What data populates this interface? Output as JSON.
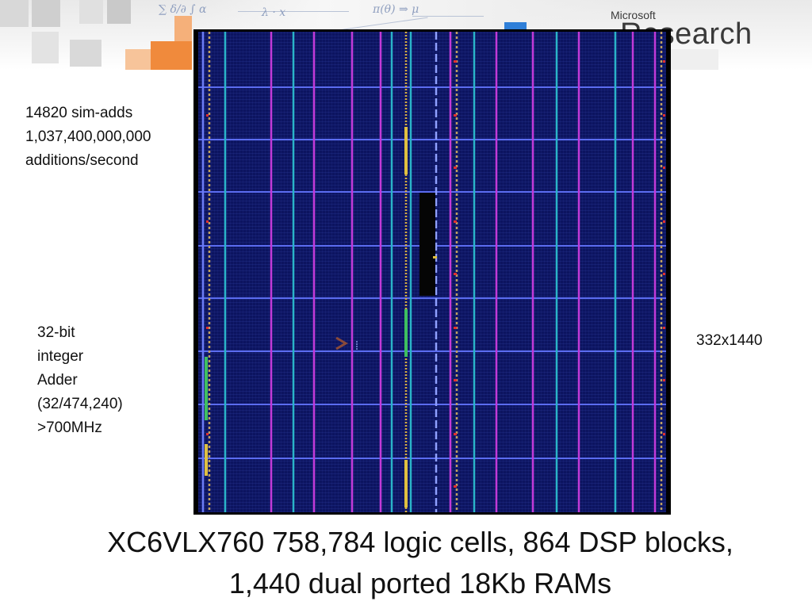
{
  "brand": {
    "company": "Microsoft",
    "division": "Research"
  },
  "annotations": {
    "sim_adds": [
      "14820 sim-adds",
      "1,037,400,000,000",
      "additions/second"
    ],
    "adder": [
      "32-bit",
      "integer",
      "Adder",
      "(32/474,240)",
      ">700MHz"
    ],
    "dimensions": "332x1440"
  },
  "caption": {
    "line1": "XC6VLX760 758,784 logic cells, 864 DSP blocks,",
    "line2": "1,440 dual ported 18Kb RAMs"
  },
  "colors": {
    "chip_background": "#0c1460",
    "grid_line": "#5b6cf0",
    "cyan_column": "#2ab3c8",
    "magenta_column": "#c23ad8",
    "arrow": "#e8a878",
    "orange_square": "#f08a3c",
    "blue_square": "#2f7fd8"
  }
}
